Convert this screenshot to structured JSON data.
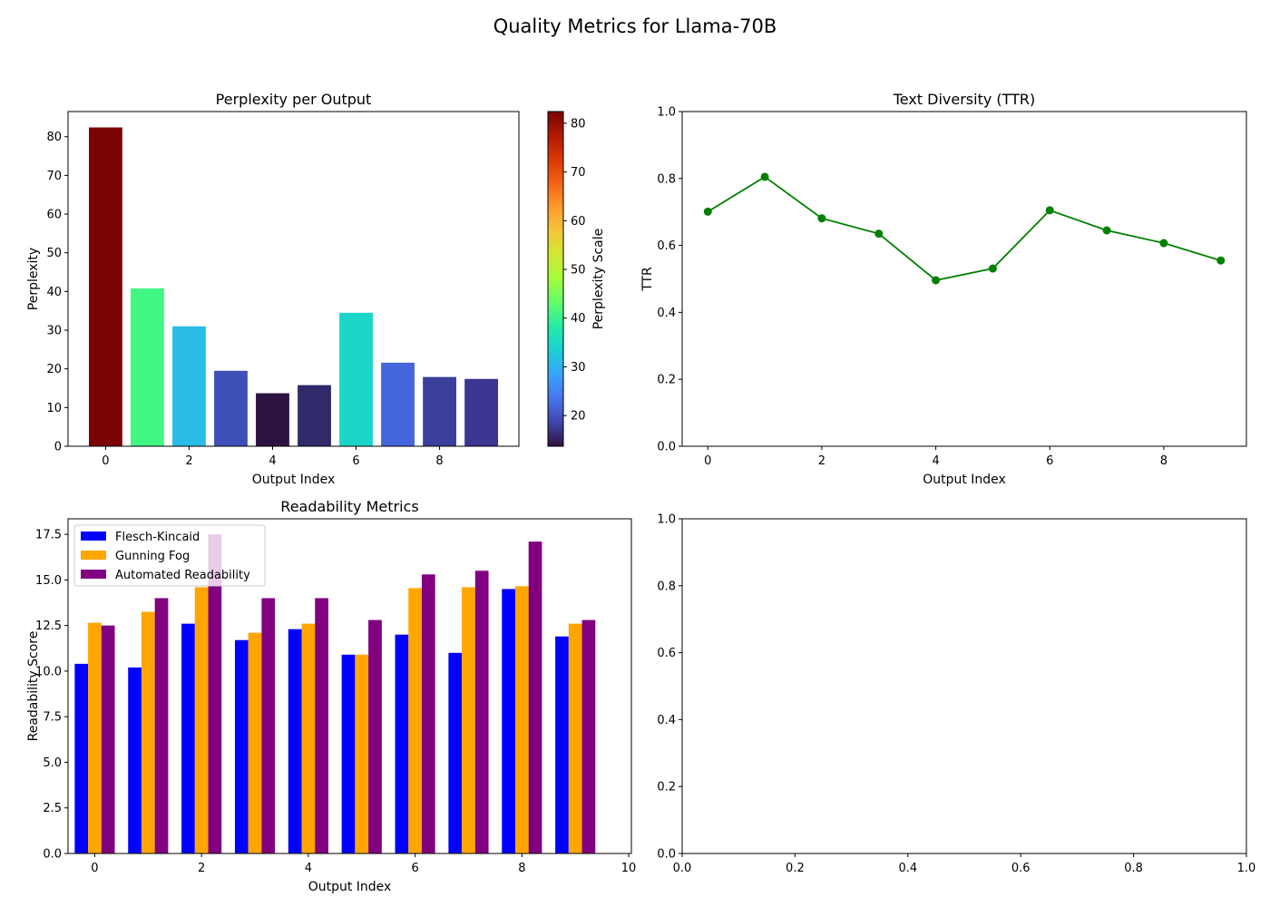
{
  "figure": {
    "title": "Quality Metrics for Llama-70B"
  },
  "chart_data": [
    {
      "id": "perplexity",
      "type": "bar",
      "title": "Perplexity per Output",
      "xlabel": "Output Index",
      "ylabel": "Perplexity",
      "x": [
        0,
        1,
        2,
        3,
        4,
        5,
        6,
        7,
        8,
        9
      ],
      "values": [
        82.4,
        40.8,
        31.0,
        19.5,
        13.7,
        15.8,
        34.5,
        21.6,
        17.9,
        17.4
      ],
      "colors": [
        "#7a0403",
        "#42f684",
        "#2bbde8",
        "#3e4fb8",
        "#2d1340",
        "#30296a",
        "#1bd6c8",
        "#4465dc",
        "#3b3f9c",
        "#3d3592"
      ],
      "xlim": [
        -0.9,
        9.9
      ],
      "ylim": [
        0,
        86.5
      ],
      "xticks": [
        0,
        2,
        4,
        6,
        8
      ],
      "yticks": [
        0,
        10,
        20,
        30,
        40,
        50,
        60,
        70,
        80
      ],
      "colorbar": {
        "label": "Perplexity Scale",
        "range": [
          13.7,
          82.4
        ],
        "ticks": [
          20,
          30,
          40,
          50,
          60,
          70,
          80
        ],
        "colormap_stops": [
          "#30123b",
          "#4145ab",
          "#4675ed",
          "#39a2fc",
          "#1bcfd4",
          "#24eca6",
          "#61fc6c",
          "#a4fc3b",
          "#d1e834",
          "#f3c63a",
          "#fe9b2d",
          "#f36315",
          "#d93806",
          "#b11901",
          "#7a0403"
        ]
      }
    },
    {
      "id": "ttr",
      "type": "line",
      "title": "Text Diversity (TTR)",
      "xlabel": "Output Index",
      "ylabel": "TTR",
      "x": [
        0,
        1,
        2,
        3,
        4,
        5,
        6,
        7,
        8,
        9
      ],
      "y": [
        0.701,
        0.805,
        0.681,
        0.635,
        0.496,
        0.531,
        0.705,
        0.645,
        0.607,
        0.555
      ],
      "color": "#008000",
      "xlim": [
        -0.45,
        9.45
      ],
      "ylim": [
        0,
        1.0
      ],
      "xticks": [
        0,
        2,
        4,
        6,
        8
      ],
      "yticks": [
        0.0,
        0.2,
        0.4,
        0.6,
        0.8,
        1.0
      ]
    },
    {
      "id": "readability",
      "type": "bar",
      "title": "Readability Metrics",
      "xlabel": "Output Index",
      "ylabel": "Readability Score",
      "x": [
        0,
        1,
        2,
        3,
        4,
        5,
        6,
        7,
        8,
        9
      ],
      "series": [
        {
          "name": "Flesch-Kincaid",
          "color": "#0000ff",
          "values": [
            10.4,
            10.2,
            12.6,
            11.7,
            12.3,
            10.9,
            12.0,
            11.0,
            14.5,
            11.9
          ]
        },
        {
          "name": "Gunning Fog",
          "color": "#ffa500",
          "values": [
            12.65,
            13.25,
            14.6,
            12.1,
            12.6,
            10.9,
            14.55,
            14.6,
            14.65,
            12.6
          ]
        },
        {
          "name": "Automated Readability",
          "color": "#800080",
          "values": [
            12.5,
            14.0,
            17.5,
            14.0,
            14.0,
            12.8,
            15.3,
            15.5,
            17.1,
            12.8
          ]
        }
      ],
      "xlim": [
        -0.5,
        10.05
      ],
      "ylim": [
        0,
        18.35
      ],
      "xticks": [
        0,
        2,
        4,
        6,
        8,
        10
      ],
      "yticks": [
        0.0,
        2.5,
        5.0,
        7.5,
        10.0,
        12.5,
        15.0,
        17.5
      ],
      "legend_position": "top-left"
    },
    {
      "id": "empty",
      "type": "line",
      "title": "",
      "xlabel": "",
      "ylabel": "",
      "xlim": [
        0,
        1
      ],
      "ylim": [
        0,
        1
      ],
      "xticks": [
        0.0,
        0.2,
        0.4,
        0.6,
        0.8,
        1.0
      ],
      "yticks": [
        0.0,
        0.2,
        0.4,
        0.6,
        0.8,
        1.0
      ]
    }
  ]
}
